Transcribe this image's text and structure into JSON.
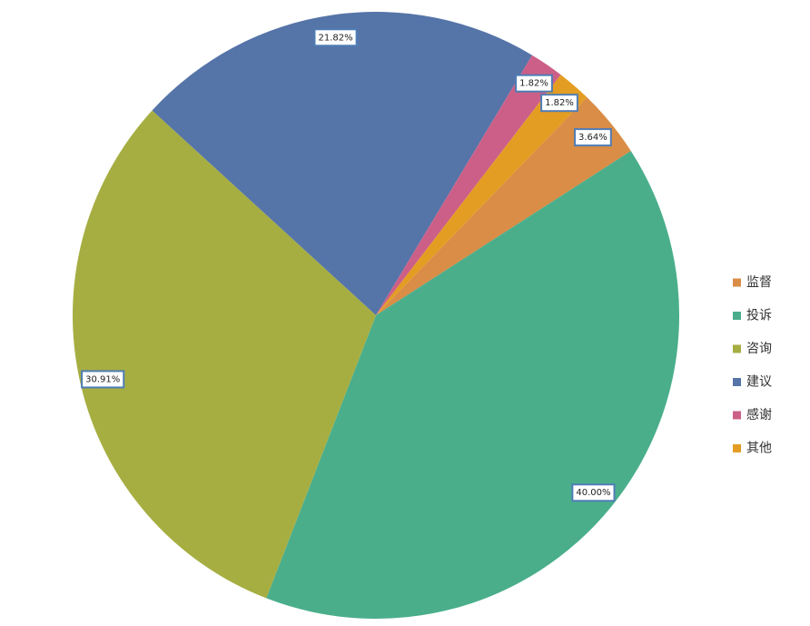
{
  "chart_data": {
    "type": "pie",
    "categories": [
      "监督",
      "投诉",
      "咨询",
      "建议",
      "感谢",
      "其他"
    ],
    "values": [
      3.64,
      40.0,
      30.91,
      21.82,
      1.82,
      1.82
    ],
    "value_labels": [
      "3.64%",
      "40.00%",
      "30.91%",
      "21.82%",
      "1.82%",
      "1.82%"
    ],
    "colors": [
      "#d98d46",
      "#4aae8b",
      "#a6ae42",
      "#5574a8",
      "#cc5f87",
      "#e39d22"
    ],
    "legend": "right"
  }
}
